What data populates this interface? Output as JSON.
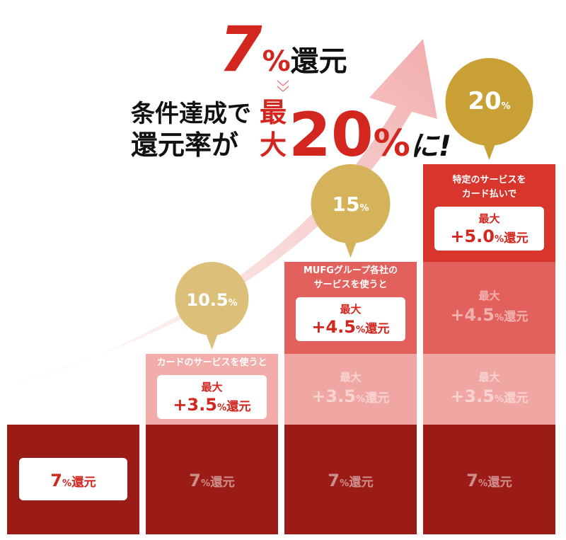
{
  "headline": {
    "value": "7",
    "unit": "%",
    "suffix": "還元"
  },
  "subhead": {
    "line1": "条件達成で",
    "line2": "還元率が",
    "max": [
      "最",
      "大"
    ],
    "value": "20",
    "unit": "%",
    "suffix": "に!"
  },
  "columns": [
    {
      "base": {
        "value": "7",
        "unit": "%",
        "suffix": "還元"
      },
      "layers": []
    },
    {
      "bubble": {
        "value": "10.5",
        "unit": "%"
      },
      "base": {
        "value": "7",
        "unit": "%",
        "suffix": "還元"
      },
      "layers": [
        {
          "caption": [
            "カードのサービスを使うと"
          ],
          "max": "最大",
          "sign": "+",
          "value": "3.5",
          "unit": "%",
          "suffix": "還元"
        }
      ]
    },
    {
      "bubble": {
        "value": "15",
        "unit": "%"
      },
      "base": {
        "value": "7",
        "unit": "%",
        "suffix": "還元"
      },
      "layers": [
        {
          "max": "最大",
          "sign": "+",
          "value": "3.5",
          "unit": "%",
          "suffix": "還元"
        },
        {
          "caption": [
            "MUFGグループ各社の",
            "サービスを使うと"
          ],
          "max": "最大",
          "sign": "+",
          "value": "4.5",
          "unit": "%",
          "suffix": "還元"
        }
      ]
    },
    {
      "bubble": {
        "value": "20",
        "unit": "%"
      },
      "base": {
        "value": "7",
        "unit": "%",
        "suffix": "還元"
      },
      "layers": [
        {
          "max": "最大",
          "sign": "+",
          "value": "3.5",
          "unit": "%",
          "suffix": "還元"
        },
        {
          "max": "最大",
          "sign": "+",
          "value": "4.5",
          "unit": "%",
          "suffix": "還元"
        },
        {
          "caption": [
            "特定のサービスを",
            "カード払いで"
          ],
          "max": "最大",
          "sign": "+",
          "value": "5.0",
          "unit": "%",
          "suffix": "還元"
        }
      ]
    }
  ]
}
